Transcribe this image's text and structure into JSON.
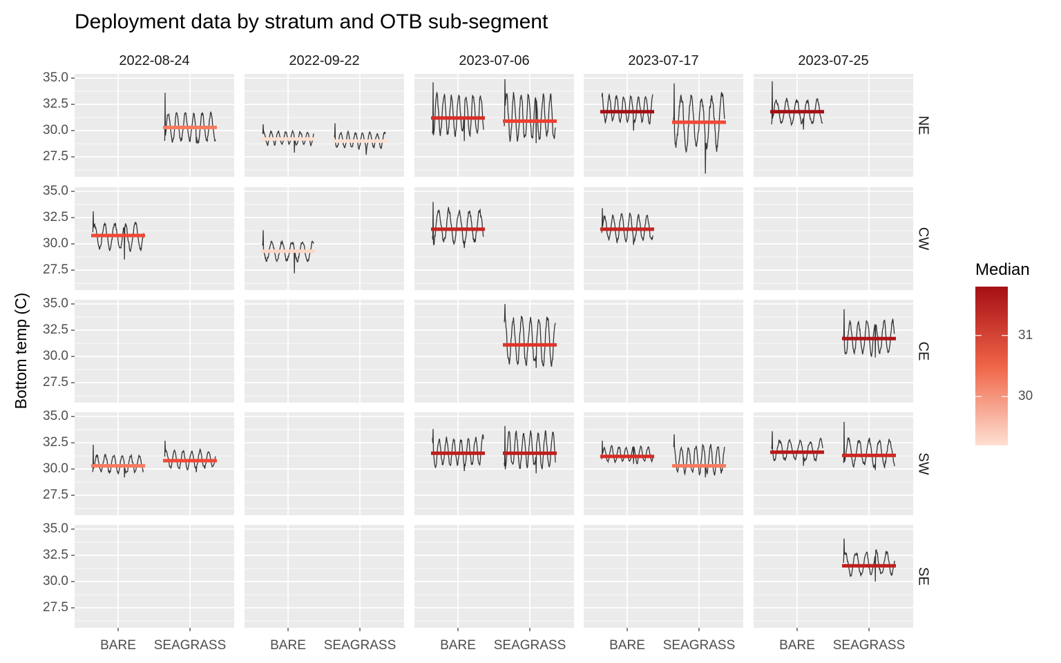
{
  "chart_data": {
    "type": "line",
    "title": "Deployment data by stratum and OTB sub-segment",
    "ylabel": "Bottom temp (C)",
    "xlabel": "",
    "columns": [
      "2022-08-24",
      "2022-09-22",
      "2023-07-06",
      "2023-07-17",
      "2023-07-25"
    ],
    "rows": [
      "NE",
      "CW",
      "CE",
      "SW",
      "SE"
    ],
    "categories": [
      "BARE",
      "SEAGRASS"
    ],
    "yticks": [
      "35.0",
      "32.5",
      "30.0",
      "27.5"
    ],
    "ylim": [
      25.6,
      35.4
    ],
    "legend": {
      "title": "Median",
      "ticks": [
        "31",
        "30"
      ],
      "range": [
        29.2,
        31.8
      ],
      "low_color": "#FEE0D2",
      "high_color": "#A50F15",
      "position": "right"
    },
    "panel_background": "#EBEBEB",
    "grid": true,
    "series": [
      {
        "column": "2022-08-24",
        "row": "NE",
        "category": "SEAGRASS",
        "median": 30.3,
        "min": 28.8,
        "max": 33.6,
        "mean": 30.3,
        "amp": 1.3
      },
      {
        "column": "2022-09-22",
        "row": "NE",
        "category": "BARE",
        "median": 29.2,
        "min": 27.9,
        "max": 30.6,
        "mean": 29.3,
        "amp": 0.6
      },
      {
        "column": "2022-09-22",
        "row": "NE",
        "category": "SEAGRASS",
        "median": 29.0,
        "min": 27.7,
        "max": 30.7,
        "mean": 29.1,
        "amp": 0.7
      },
      {
        "column": "2023-07-06",
        "row": "NE",
        "category": "BARE",
        "median": 31.2,
        "min": 29.0,
        "max": 34.6,
        "mean": 31.5,
        "amp": 1.8
      },
      {
        "column": "2023-07-06",
        "row": "NE",
        "category": "SEAGRASS",
        "median": 30.9,
        "min": 28.8,
        "max": 34.9,
        "mean": 31.3,
        "amp": 2.1
      },
      {
        "column": "2023-07-17",
        "row": "NE",
        "category": "BARE",
        "median": 31.8,
        "min": 30.0,
        "max": 33.6,
        "mean": 32.0,
        "amp": 1.2
      },
      {
        "column": "2023-07-17",
        "row": "NE",
        "category": "SEAGRASS",
        "median": 30.8,
        "min": 25.9,
        "max": 34.5,
        "mean": 30.9,
        "amp": 2.4
      },
      {
        "column": "2023-07-25",
        "row": "NE",
        "category": "BARE",
        "median": 31.8,
        "min": 30.1,
        "max": 34.7,
        "mean": 31.8,
        "amp": 1.1
      },
      {
        "column": "2022-08-24",
        "row": "CW",
        "category": "BARE",
        "median": 30.8,
        "min": 28.5,
        "max": 33.1,
        "mean": 30.7,
        "amp": 1.2
      },
      {
        "column": "2022-09-22",
        "row": "CW",
        "category": "BARE",
        "median": 29.3,
        "min": 27.2,
        "max": 31.3,
        "mean": 29.3,
        "amp": 0.9
      },
      {
        "column": "2023-07-06",
        "row": "CW",
        "category": "BARE",
        "median": 31.4,
        "min": 29.6,
        "max": 34.0,
        "mean": 31.7,
        "amp": 1.5
      },
      {
        "column": "2023-07-17",
        "row": "CW",
        "category": "BARE",
        "median": 31.4,
        "min": 29.9,
        "max": 33.4,
        "mean": 31.5,
        "amp": 1.2
      },
      {
        "column": "2023-07-06",
        "row": "CE",
        "category": "SEAGRASS",
        "median": 31.1,
        "min": 28.9,
        "max": 35.0,
        "mean": 31.5,
        "amp": 2.1
      },
      {
        "column": "2023-07-25",
        "row": "CE",
        "category": "SEAGRASS",
        "median": 31.7,
        "min": 29.9,
        "max": 34.5,
        "mean": 31.8,
        "amp": 1.5
      },
      {
        "column": "2022-08-24",
        "row": "SW",
        "category": "BARE",
        "median": 30.3,
        "min": 29.2,
        "max": 32.3,
        "mean": 30.5,
        "amp": 0.8
      },
      {
        "column": "2022-08-24",
        "row": "SW",
        "category": "SEAGRASS",
        "median": 30.8,
        "min": 29.7,
        "max": 32.7,
        "mean": 30.9,
        "amp": 0.8
      },
      {
        "column": "2023-07-06",
        "row": "SW",
        "category": "BARE",
        "median": 31.5,
        "min": 29.8,
        "max": 33.8,
        "mean": 31.6,
        "amp": 1.3
      },
      {
        "column": "2023-07-06",
        "row": "SW",
        "category": "SEAGRASS",
        "median": 31.5,
        "min": 29.6,
        "max": 34.1,
        "mean": 31.8,
        "amp": 1.6
      },
      {
        "column": "2023-07-17",
        "row": "SW",
        "category": "BARE",
        "median": 31.2,
        "min": 30.5,
        "max": 32.7,
        "mean": 31.4,
        "amp": 0.7
      },
      {
        "column": "2023-07-17",
        "row": "SW",
        "category": "SEAGRASS",
        "median": 30.3,
        "min": 29.2,
        "max": 33.3,
        "mean": 30.9,
        "amp": 1.3
      },
      {
        "column": "2023-07-25",
        "row": "SW",
        "category": "BARE",
        "median": 31.6,
        "min": 30.3,
        "max": 33.6,
        "mean": 31.8,
        "amp": 0.9
      },
      {
        "column": "2023-07-25",
        "row": "SW",
        "category": "SEAGRASS",
        "median": 31.3,
        "min": 29.9,
        "max": 34.5,
        "mean": 31.6,
        "amp": 1.2
      },
      {
        "column": "2023-07-25",
        "row": "SE",
        "category": "SEAGRASS",
        "median": 31.5,
        "min": 30.0,
        "max": 34.1,
        "mean": 31.7,
        "amp": 1.1
      }
    ]
  }
}
